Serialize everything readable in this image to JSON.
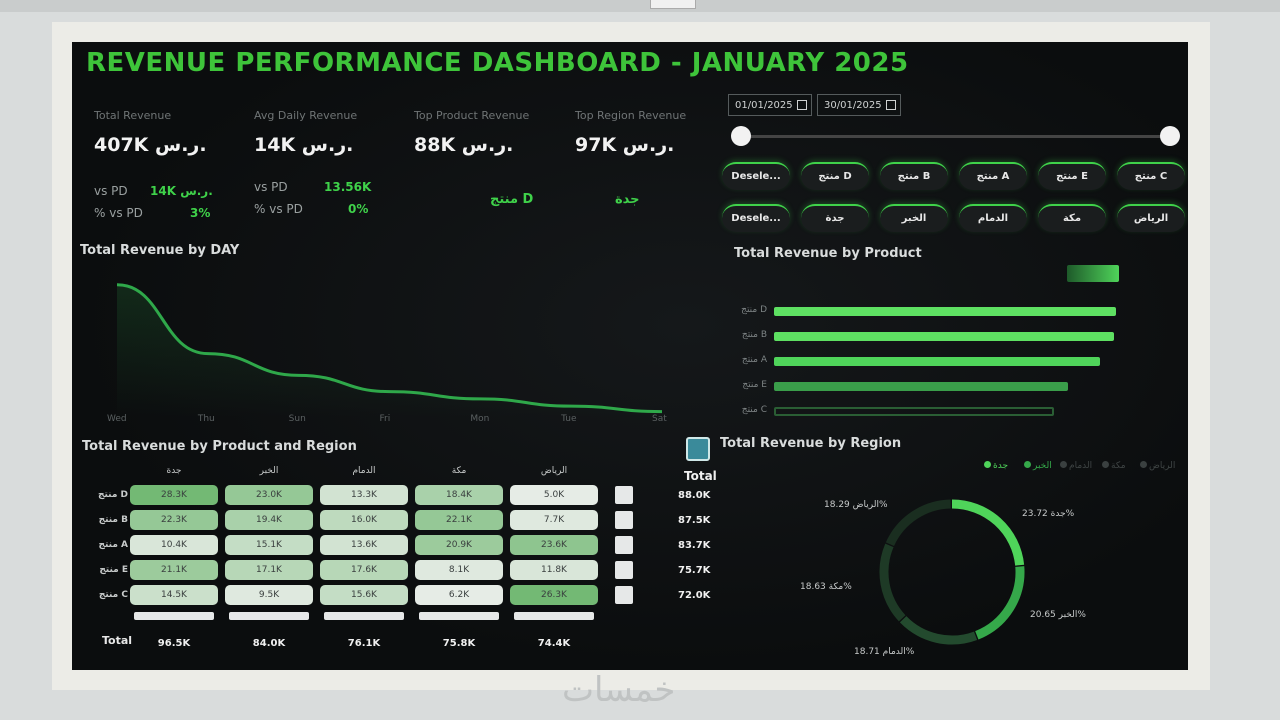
{
  "dashboard": {
    "title": "REVENUE PERFORMANCE DASHBOARD - JANUARY 2025"
  },
  "kpis": [
    {
      "label": "Total Revenue",
      "value": "407K ر.س.",
      "sub1_label": "vs PD",
      "sub1_value": "14K ر.س.",
      "sub2_label": "% vs PD",
      "sub2_value": "3%"
    },
    {
      "label": "Avg Daily Revenue",
      "value": "14K ر.س.",
      "sub1_label": "vs PD",
      "sub1_value": "13.56K",
      "sub2_label": "% vs PD",
      "sub2_value": "0%"
    },
    {
      "label": "Top Product Revenue",
      "value": "88K ر.س.",
      "top": "منتج D"
    },
    {
      "label": "Top Region Revenue",
      "value": "97K ر.س.",
      "top": "جدة"
    }
  ],
  "date_filter": {
    "start": "01/01/2025",
    "end": "30/01/2025",
    "slider_start_fraction": 0,
    "slider_end_fraction": 1
  },
  "product_chips": [
    "Desele...",
    "منتج D",
    "منتج B",
    "منتج A",
    "منتج E",
    "منتج C"
  ],
  "region_chips": [
    "Desele...",
    "جدة",
    "الخبر",
    "الدمام",
    "مكة",
    "الرياض"
  ],
  "day_chart": {
    "title": "Total Revenue by DAY",
    "chart_data": {
      "type": "area",
      "categories": [
        "Wed",
        "Thu",
        "Sun",
        "Fri",
        "Mon",
        "Tue",
        "Sat"
      ],
      "values": [
        73,
        35,
        23,
        14,
        10,
        6,
        3
      ],
      "ylim": [
        0,
        80
      ],
      "color": "#2fa84a"
    }
  },
  "product_chart": {
    "title": "Total Revenue by Product",
    "chart_data": {
      "type": "bar",
      "categories": [
        "منتج D",
        "منتج B",
        "منتج A",
        "منتج E",
        "منتج C"
      ],
      "values": [
        88.0,
        87.5,
        83.7,
        75.7,
        72.0
      ],
      "xlim": [
        0,
        90
      ],
      "colors": [
        "#5ee062",
        "#5ee062",
        "#4fd45a",
        "#3a9e4a",
        "#2a5e34"
      ]
    }
  },
  "matrix": {
    "title": "Total Revenue by Product and Region",
    "columns": [
      "جدة",
      "الخبر",
      "الدمام",
      "مكة",
      "الرياض"
    ],
    "rows": [
      {
        "name": "منتج D",
        "cells": [
          "28.3K",
          "23.0K",
          "13.3K",
          "18.4K",
          "5.0K"
        ],
        "shades": [
          0.85,
          0.6,
          0.15,
          0.45,
          0.0
        ],
        "total": "88.0K"
      },
      {
        "name": "منتج B",
        "cells": [
          "22.3K",
          "19.4K",
          "16.0K",
          "22.1K",
          "7.7K"
        ],
        "shades": [
          0.6,
          0.45,
          0.3,
          0.6,
          0.05
        ],
        "total": "87.5K"
      },
      {
        "name": "منتج A",
        "cells": [
          "10.4K",
          "15.1K",
          "13.6K",
          "20.9K",
          "23.6K"
        ],
        "shades": [
          0.1,
          0.25,
          0.15,
          0.55,
          0.65
        ],
        "total": "83.7K"
      },
      {
        "name": "منتج E",
        "cells": [
          "21.1K",
          "17.1K",
          "17.6K",
          "8.1K",
          "11.8K"
        ],
        "shades": [
          0.55,
          0.35,
          0.35,
          0.05,
          0.1
        ],
        "total": "75.7K"
      },
      {
        "name": "منتج C",
        "cells": [
          "14.5K",
          "9.5K",
          "15.6K",
          "6.2K",
          "26.3K"
        ],
        "shades": [
          0.2,
          0.05,
          0.25,
          0.0,
          0.85
        ],
        "total": "72.0K"
      }
    ],
    "total_label": "Total",
    "row_total_header": "Total",
    "column_totals": [
      "96.5K",
      "84.0K",
      "76.1K",
      "75.8K",
      "74.4K"
    ]
  },
  "region_chart": {
    "title": "Total Revenue by Region",
    "chart_data": {
      "type": "pie",
      "categories": [
        "جدة",
        "الخبر",
        "الدمام",
        "مكة",
        "الرياض"
      ],
      "values": [
        23.72,
        20.65,
        18.71,
        18.63,
        18.29
      ],
      "labels": [
        "جدة 23.72%",
        "الخبر 20.65%",
        "الدمام 18.71%",
        "مكة 18.63%",
        "الرياض 18.29%"
      ],
      "colors": [
        "#4fd45a",
        "#35a84a",
        "#234a2e",
        "#1e3a26",
        "#1a2e20"
      ]
    }
  }
}
